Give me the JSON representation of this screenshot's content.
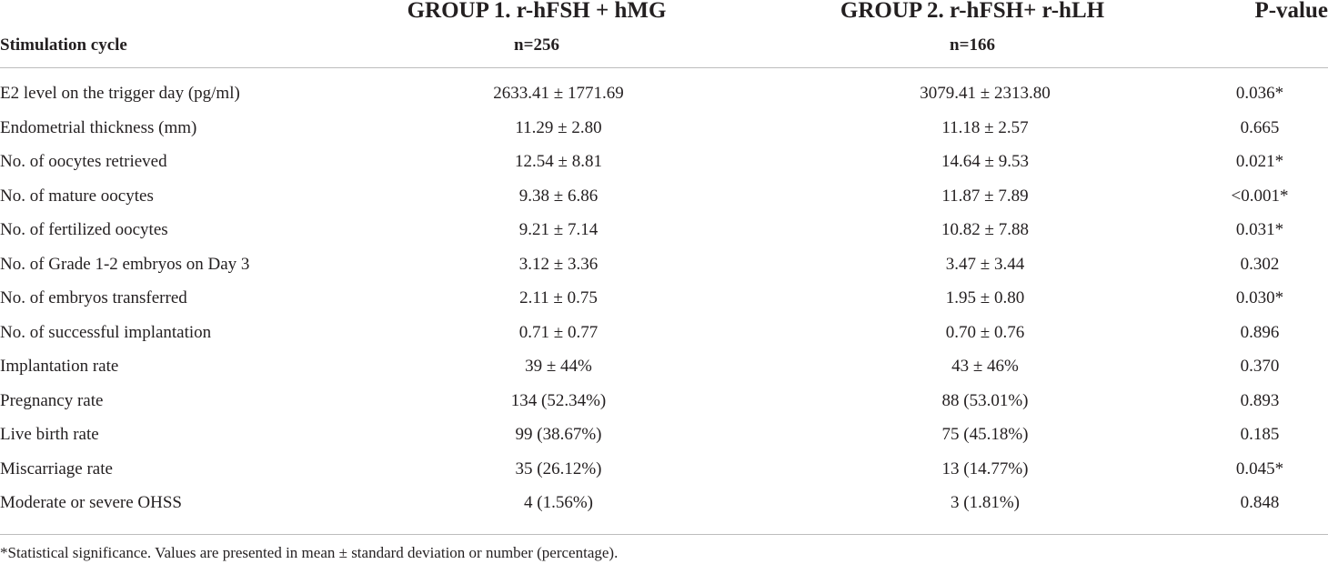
{
  "header": {
    "group1_title": "GROUP 1. r-hFSH + hMG",
    "group2_title": "GROUP 2. r-hFSH+ r-hLH",
    "pvalue_title": "P-value",
    "row_label_title": "Stimulation cycle",
    "group1_n": "n=256",
    "group2_n": "n=166"
  },
  "rows": [
    {
      "label": "E2 level on the trigger day (pg/ml)",
      "g1": "2633.41 ± 1771.69",
      "g2": "3079.41 ± 2313.80",
      "p": "0.036*"
    },
    {
      "label": "Endometrial thickness (mm)",
      "g1": "11.29 ± 2.80",
      "g2": "11.18 ± 2.57",
      "p": "0.665"
    },
    {
      "label": "No. of oocytes retrieved",
      "g1": "12.54 ± 8.81",
      "g2": "14.64 ± 9.53",
      "p": "0.021*"
    },
    {
      "label": "No. of mature oocytes",
      "g1": "9.38 ± 6.86",
      "g2": "11.87 ± 7.89",
      "p": "<0.001*"
    },
    {
      "label": "No. of fertilized oocytes",
      "g1": "9.21 ± 7.14",
      "g2": "10.82 ± 7.88",
      "p": "0.031*"
    },
    {
      "label": "No. of Grade 1-2 embryos on Day 3",
      "g1": "3.12 ± 3.36",
      "g2": "3.47 ± 3.44",
      "p": "0.302"
    },
    {
      "label": "No. of embryos transferred",
      "g1": "2.11 ± 0.75",
      "g2": "1.95 ± 0.80",
      "p": "0.030*"
    },
    {
      "label": "No. of successful implantation",
      "g1": "0.71 ± 0.77",
      "g2": "0.70 ± 0.76",
      "p": "0.896"
    },
    {
      "label": "Implantation rate",
      "g1": "39 ± 44%",
      "g2": "43 ± 46%",
      "p": "0.370"
    },
    {
      "label": "Pregnancy rate",
      "g1": "134 (52.34%)",
      "g2": "88 (53.01%)",
      "p": "0.893"
    },
    {
      "label": "Live birth rate",
      "g1": "99 (38.67%)",
      "g2": "75 (45.18%)",
      "p": "0.185"
    },
    {
      "label": "Miscarriage rate",
      "g1": "35 (26.12%)",
      "g2": "13 (14.77%)",
      "p": "0.045*"
    },
    {
      "label": "Moderate or severe OHSS",
      "g1": "4 (1.56%)",
      "g2": "3 (1.81%)",
      "p": "0.848"
    }
  ],
  "footnote": "*Statistical significance. Values are presented in mean ± standard deviation or number (percentage).",
  "colors": {
    "text": "#231f20",
    "rule": "#bdbdbd",
    "background": "#ffffff"
  }
}
